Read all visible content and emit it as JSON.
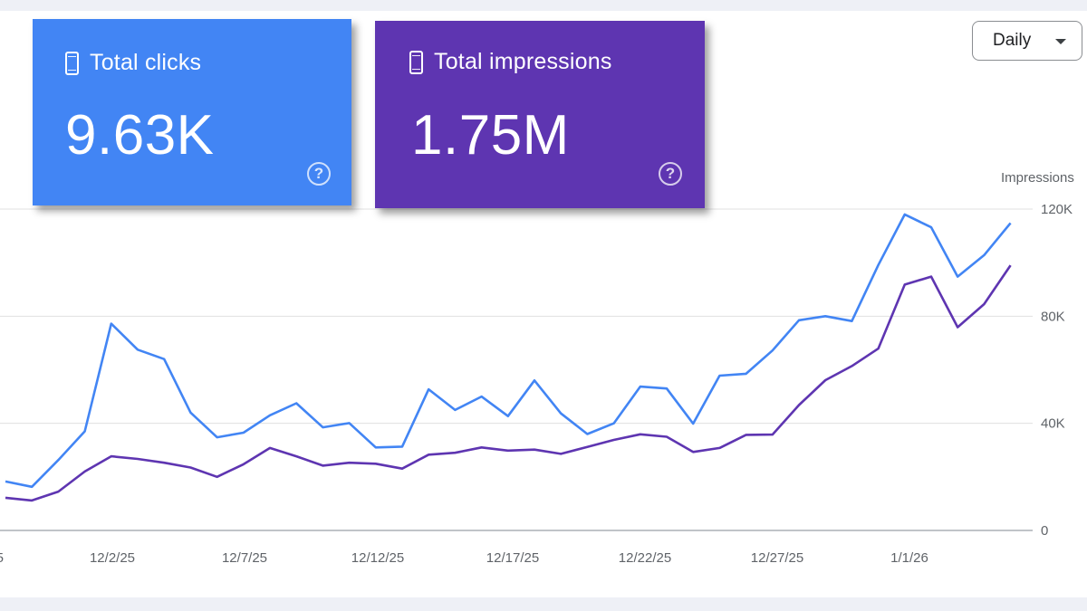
{
  "cards": {
    "clicks": {
      "label": "Total clicks",
      "value": "9.63K",
      "color": "#4285f4",
      "icon": "device-icon"
    },
    "impressions": {
      "label": "Total impressions",
      "value": "1.75M",
      "color": "#5e35b1",
      "icon": "device-icon"
    }
  },
  "period_select": {
    "value": "Daily"
  },
  "chart_data": {
    "type": "line",
    "ylabel_right": "Impressions",
    "y_right_ticks": [
      "120K",
      "80K",
      "40K",
      "0"
    ],
    "y_right_values": [
      120000,
      80000,
      40000,
      0
    ],
    "ylim_right": [
      0,
      120000
    ],
    "x_ticks": [
      "5",
      "12/2/25",
      "12/7/25",
      "12/12/25",
      "12/17/25",
      "12/22/25",
      "12/27/25",
      "1/1/26"
    ],
    "grid": true,
    "series": [
      {
        "metric": "clicks",
        "color": "#4285f4",
        "values": [
          18300,
          16300,
          26300,
          37000,
          77200,
          67500,
          64000,
          44000,
          34800,
          36500,
          43000,
          47500,
          38500,
          40100,
          31000,
          31300,
          52700,
          45000,
          50000,
          42700,
          56000,
          43700,
          36000,
          40000,
          53700,
          53000,
          39900,
          57800,
          58500,
          67200,
          78500,
          80000,
          78200,
          99100,
          118000,
          113200,
          94800,
          102800,
          114800
        ]
      },
      {
        "metric": "impressions",
        "color": "#5e35b1",
        "values": [
          12200,
          11200,
          14500,
          22000,
          27700,
          26700,
          25300,
          23500,
          20000,
          24700,
          30800,
          27700,
          24200,
          25300,
          24900,
          23100,
          28300,
          29000,
          31000,
          29800,
          30200,
          28600,
          31200,
          33800,
          35900,
          35000,
          29300,
          30800,
          35700,
          35800,
          46800,
          56100,
          61400,
          67900,
          91800,
          94800,
          75900,
          84500,
          99000
        ]
      }
    ]
  }
}
